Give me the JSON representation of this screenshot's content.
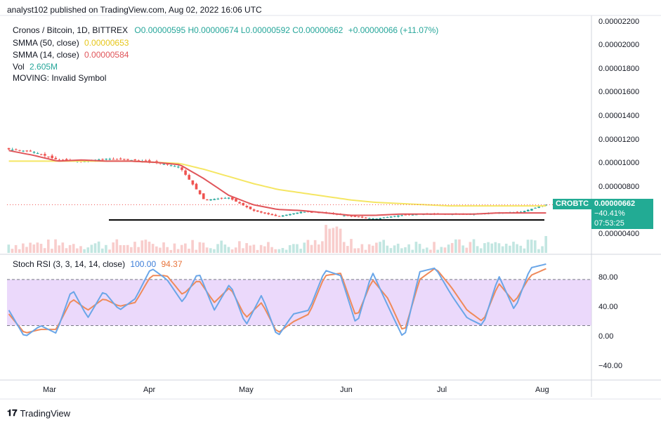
{
  "header": {
    "publish_line": "analyst102 published on TradingView.com, Aug 02, 2022 16:06 UTC"
  },
  "legend": {
    "symbol": "Cronos / Bitcoin, 1D, BITTREX",
    "ohlc": "O0.00000595  H0.00000674  L0.00000592  C0.00000662",
    "change": "+0.00000066 (+11.07%)",
    "smma50_label": "SMMA (50, close)",
    "smma50_value": "0.00000653",
    "smma14_label": "SMMA (14, close)",
    "smma14_value": "0.00000584",
    "vol_label": "Vol",
    "vol_value": "2.605M",
    "moving_label": "MOVING: Invalid Symbol"
  },
  "price_axis": {
    "ticks": [
      "0.00002200",
      "0.00002000",
      "0.00001800",
      "0.00001600",
      "0.00001400",
      "0.00001200",
      "0.00001000",
      "0.00000800",
      "0.00000400"
    ],
    "symbol_tag": "CROBTC",
    "last_price": "0.00000662",
    "last_change": "−40.41%",
    "countdown": "07:53:25"
  },
  "stoch": {
    "label": "Stoch RSI (3, 3, 14, 14, close)",
    "k_value": "100.00",
    "d_value": "94.37",
    "ticks": [
      "80.00",
      "40.00",
      "0.00",
      "−40.00"
    ]
  },
  "time_axis": {
    "labels": [
      "Mar",
      "Apr",
      "May",
      "Jun",
      "Jul",
      "Aug"
    ]
  },
  "footer": {
    "brand": "TradingView"
  },
  "colors": {
    "up": "#26a69a",
    "down": "#ef5350",
    "smma50": "#f5e663",
    "smma14": "#e0555a",
    "k": "#6aa6e8",
    "d": "#ef8a5a",
    "band": "#e4ccf9",
    "last_price": "#22ab94"
  },
  "chart_data": [
    {
      "type": "candlestick",
      "title": "Cronos / Bitcoin, 1D, BITTREX",
      "x": [
        "Mar",
        "Apr",
        "May",
        "Jun",
        "Jul",
        "Aug"
      ],
      "ylim": [
        3.4e-06,
        2.22e-05
      ],
      "close_approx": [
        1.13e-05,
        1.11e-05,
        1.04e-05,
        1.03e-05,
        1.05e-05,
        1.04e-05,
        1.02e-05,
        9.8e-06,
        7e-06,
        7.2e-06,
        6.1e-06,
        5.6e-06,
        6e-06,
        5.9e-06,
        5.6e-06,
        5.4e-06,
        5.7e-06,
        5.8e-06,
        5.8e-06,
        5.8e-06,
        5.9e-06,
        6e-06,
        6.6e-06
      ],
      "smma14_approx": [
        1.12e-05,
        1.08e-05,
        1.03e-05,
        1.04e-05,
        1.03e-05,
        1.03e-05,
        1.02e-05,
        1e-05,
        8.8e-06,
        7.4e-06,
        6.6e-06,
        6.2e-06,
        6.1e-06,
        5.9e-06,
        5.7e-06,
        5.7e-06,
        5.8e-06,
        5.8e-06,
        5.8e-06,
        5.8e-06,
        5.9e-06,
        5.9e-06,
        5.9e-06
      ],
      "smma50_approx": [
        1.03e-05,
        1.03e-05,
        1.03e-05,
        1.03e-05,
        1.03e-05,
        1.03e-05,
        1.02e-05,
        1.01e-05,
        9.6e-06,
        9e-06,
        8.4e-06,
        7.9e-06,
        7.6e-06,
        7.3e-06,
        7e-06,
        6.8e-06,
        6.7e-06,
        6.6e-06,
        6.5e-06,
        6.5e-06,
        6.5e-06,
        6.5e-06,
        6.5e-06
      ],
      "support_level_approx": 5.3e-06
    },
    {
      "type": "line",
      "title": "Stoch RSI (3, 3, 14, 14, close)",
      "ylim": [
        -50,
        110
      ],
      "bands": [
        20,
        80
      ],
      "series": [
        {
          "name": "K",
          "values": [
            40,
            5,
            20,
            10,
            68,
            30,
            65,
            40,
            55,
            95,
            80,
            50,
            90,
            40,
            75,
            20,
            60,
            5,
            35,
            40,
            92,
            85,
            20,
            90,
            45,
            2,
            90,
            95,
            60,
            30,
            20,
            85,
            40,
            95,
            100
          ]
        },
        {
          "name": "D",
          "values": [
            35,
            10,
            15,
            15,
            55,
            40,
            55,
            45,
            50,
            85,
            85,
            60,
            80,
            50,
            70,
            30,
            50,
            10,
            25,
            35,
            85,
            88,
            30,
            80,
            55,
            10,
            80,
            95,
            70,
            40,
            25,
            75,
            50,
            85,
            94
          ]
        }
      ]
    }
  ]
}
